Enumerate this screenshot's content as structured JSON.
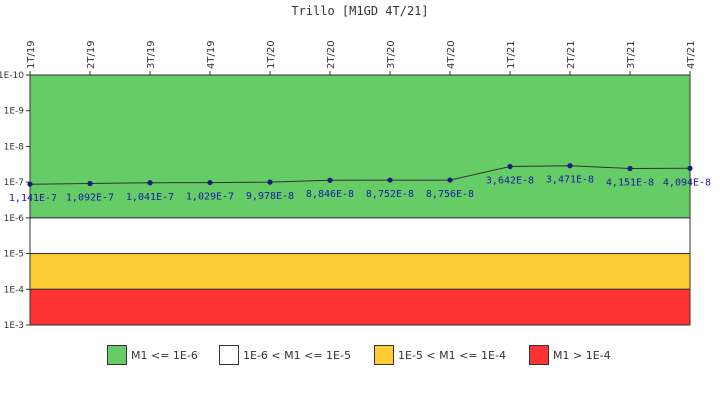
{
  "chart_data": {
    "type": "line",
    "title": "Trillo [M1GD 4T/21]",
    "categories": [
      "1T/19",
      "2T/19",
      "3T/19",
      "4T/19",
      "1T/20",
      "2T/20",
      "3T/20",
      "4T/20",
      "1T/21",
      "2T/21",
      "3T/21",
      "4T/21"
    ],
    "values": [
      1.141e-07,
      1.092e-07,
      1.041e-07,
      1.029e-07,
      9.978e-08,
      8.846e-08,
      8.752e-08,
      8.756e-08,
      3.642e-08,
      3.471e-08,
      4.151e-08,
      4.094e-08
    ],
    "value_labels": [
      "1,141E-7",
      "1,092E-7",
      "1,041E-7",
      "1,029E-7",
      "9,978E-8",
      "8,846E-8",
      "8,752E-8",
      "8,756E-8",
      "3,642E-8",
      "3,471E-8",
      "4,151E-8",
      "4,094E-8"
    ],
    "y_axis": {
      "scale": "log",
      "inverted": true,
      "min": 1e-10,
      "max": 0.001,
      "tick_values": [
        1e-10,
        1e-09,
        1e-08,
        1e-07,
        1e-06,
        1e-05,
        0.0001,
        0.001
      ],
      "tick_labels": [
        "1E-10",
        "1E-9",
        "1E-8",
        "1E-7",
        "1E-6",
        "1E-5",
        "1E-4",
        "1E-3"
      ]
    },
    "x_axis_position": "top",
    "grid": false,
    "bands": [
      {
        "from": 1e-10,
        "to": 1e-06,
        "color": "#66cc66",
        "label": "M1 <= 1E-6"
      },
      {
        "from": 1e-06,
        "to": 1e-05,
        "color": "#ffffff",
        "label": "1E-6 < M1 <= 1E-5"
      },
      {
        "from": 1e-05,
        "to": 0.0001,
        "color": "#ffcc33",
        "label": "1E-5 < M1 <= 1E-4"
      },
      {
        "from": 0.0001,
        "to": 0.001,
        "color": "#ff3333",
        "label": "M1 > 1E-4"
      }
    ],
    "line_color": "#333333",
    "marker_color": "#1a1a80",
    "label_color": "#1a1aa6",
    "legend_position": "bottom"
  }
}
